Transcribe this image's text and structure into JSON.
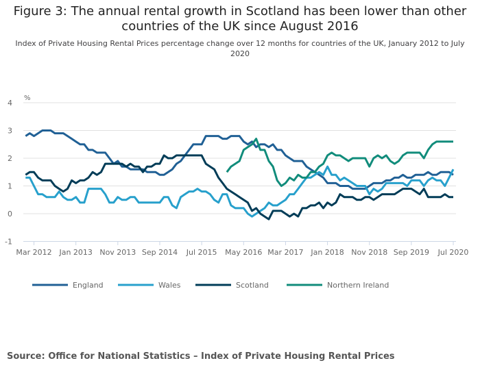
{
  "title": "Figure 3: The annual rental growth in Scotland has been lower than other countries of the UK since August 2016",
  "subtitle": "Index of Private Housing Rental Prices percentage change over 12 months for countries of the UK, January 2012 to July 2020",
  "source": "Source: Office for National Statistics – Index of Private Housing Rental Prices",
  "chart_data": {
    "type": "line",
    "ylabel": "%",
    "ylim": [
      -1,
      4
    ],
    "yticks": [
      "4",
      "3",
      "2",
      "1",
      "0",
      "-1"
    ],
    "x_start": "Jan 2012",
    "x_end": "Jul 2020",
    "xtick_labels": [
      "Mar 2012",
      "Jan 2013",
      "Nov 2013",
      "Sep 2014",
      "Jul 2015",
      "May 2016",
      "Mar 2017",
      "Jan 2018",
      "Nov 2018",
      "Sep 2019",
      "Jul 2020"
    ],
    "grid": true,
    "legend": "bottom",
    "series": [
      {
        "name": "England",
        "color": "#206095",
        "values": [
          2.8,
          2.9,
          2.8,
          2.9,
          3.0,
          3.0,
          3.0,
          2.9,
          2.9,
          2.9,
          2.8,
          2.7,
          2.6,
          2.5,
          2.5,
          2.3,
          2.3,
          2.2,
          2.2,
          2.2,
          2.0,
          1.8,
          1.9,
          1.7,
          1.7,
          1.6,
          1.6,
          1.6,
          1.6,
          1.5,
          1.5,
          1.5,
          1.4,
          1.4,
          1.5,
          1.6,
          1.8,
          1.9,
          2.1,
          2.3,
          2.5,
          2.5,
          2.5,
          2.8,
          2.8,
          2.8,
          2.8,
          2.7,
          2.7,
          2.8,
          2.8,
          2.8,
          2.6,
          2.5,
          2.6,
          2.4,
          2.5,
          2.5,
          2.4,
          2.5,
          2.3,
          2.3,
          2.1,
          2.0,
          1.9,
          1.9,
          1.9,
          1.7,
          1.6,
          1.5,
          1.4,
          1.3,
          1.1,
          1.1,
          1.1,
          1.0,
          1.0,
          1.0,
          0.9,
          0.9,
          0.9,
          0.9,
          1.0,
          1.1,
          1.1,
          1.1,
          1.2,
          1.2,
          1.3,
          1.3,
          1.4,
          1.3,
          1.3,
          1.4,
          1.4,
          1.4,
          1.5,
          1.4,
          1.4,
          1.5,
          1.5,
          1.5,
          1.4
        ]
      },
      {
        "name": "Wales",
        "color": "#27a0cc",
        "values": [
          1.3,
          1.3,
          1.0,
          0.7,
          0.7,
          0.6,
          0.6,
          0.6,
          0.8,
          0.6,
          0.5,
          0.5,
          0.6,
          0.4,
          0.4,
          0.9,
          0.9,
          0.9,
          0.9,
          0.7,
          0.4,
          0.4,
          0.6,
          0.5,
          0.5,
          0.6,
          0.6,
          0.4,
          0.4,
          0.4,
          0.4,
          0.4,
          0.4,
          0.6,
          0.6,
          0.3,
          0.2,
          0.6,
          0.7,
          0.8,
          0.8,
          0.9,
          0.8,
          0.8,
          0.7,
          0.5,
          0.4,
          0.7,
          0.7,
          0.3,
          0.2,
          0.2,
          0.2,
          0.0,
          -0.1,
          0.0,
          0.1,
          0.2,
          0.4,
          0.3,
          0.3,
          0.4,
          0.5,
          0.7,
          0.7,
          0.9,
          1.1,
          1.3,
          1.3,
          1.4,
          1.5,
          1.4,
          1.7,
          1.4,
          1.4,
          1.2,
          1.3,
          1.2,
          1.1,
          1.0,
          1.0,
          1.0,
          0.7,
          0.9,
          0.8,
          0.9,
          1.1,
          1.1,
          1.1,
          1.1,
          1.1,
          1.0,
          1.2,
          1.2,
          1.2,
          1.0,
          1.2,
          1.3,
          1.2,
          1.2,
          1.0,
          1.3,
          1.6
        ]
      },
      {
        "name": "Scotland",
        "color": "#003c57",
        "values": [
          1.4,
          1.5,
          1.5,
          1.3,
          1.2,
          1.2,
          1.2,
          1.0,
          0.9,
          0.8,
          0.9,
          1.2,
          1.1,
          1.2,
          1.2,
          1.3,
          1.5,
          1.4,
          1.5,
          1.8,
          1.8,
          1.8,
          1.8,
          1.8,
          1.7,
          1.8,
          1.7,
          1.7,
          1.5,
          1.7,
          1.7,
          1.8,
          1.8,
          2.1,
          2.0,
          2.0,
          2.1,
          2.1,
          2.1,
          2.1,
          2.1,
          2.1,
          2.1,
          1.8,
          1.7,
          1.6,
          1.3,
          1.1,
          0.9,
          0.8,
          0.7,
          0.6,
          0.5,
          0.4,
          0.1,
          0.2,
          0.0,
          -0.1,
          -0.2,
          0.1,
          0.1,
          0.1,
          0.0,
          -0.1,
          0.0,
          -0.1,
          0.2,
          0.2,
          0.3,
          0.3,
          0.4,
          0.2,
          0.4,
          0.3,
          0.4,
          0.7,
          0.6,
          0.6,
          0.6,
          0.5,
          0.5,
          0.6,
          0.6,
          0.5,
          0.6,
          0.7,
          0.7,
          0.7,
          0.7,
          0.8,
          0.9,
          0.9,
          0.9,
          0.8,
          0.7,
          0.9,
          0.6,
          0.6,
          0.6,
          0.6,
          0.7,
          0.6,
          0.6
        ]
      },
      {
        "name": "Northern Ireland",
        "color": "#118c7b",
        "values": [
          null,
          null,
          null,
          null,
          null,
          null,
          null,
          null,
          null,
          null,
          null,
          null,
          null,
          null,
          null,
          null,
          null,
          null,
          null,
          null,
          null,
          null,
          null,
          null,
          null,
          null,
          null,
          null,
          null,
          null,
          null,
          null,
          null,
          null,
          null,
          null,
          null,
          null,
          null,
          null,
          null,
          null,
          null,
          null,
          null,
          null,
          null,
          null,
          1.5,
          1.7,
          1.8,
          1.9,
          2.3,
          2.4,
          2.5,
          2.7,
          2.3,
          2.3,
          1.9,
          1.7,
          1.2,
          1.0,
          1.1,
          1.3,
          1.2,
          1.4,
          1.3,
          1.3,
          1.5,
          1.5,
          1.7,
          1.8,
          2.1,
          2.2,
          2.1,
          2.1,
          2.0,
          1.9,
          2.0,
          2.0,
          2.0,
          2.0,
          1.7,
          2.0,
          2.1,
          2.0,
          2.1,
          1.9,
          1.8,
          1.9,
          2.1,
          2.2,
          2.2,
          2.2,
          2.2,
          2.0,
          2.3,
          2.5,
          2.6,
          2.6,
          2.6,
          2.6,
          2.6
        ]
      }
    ]
  }
}
